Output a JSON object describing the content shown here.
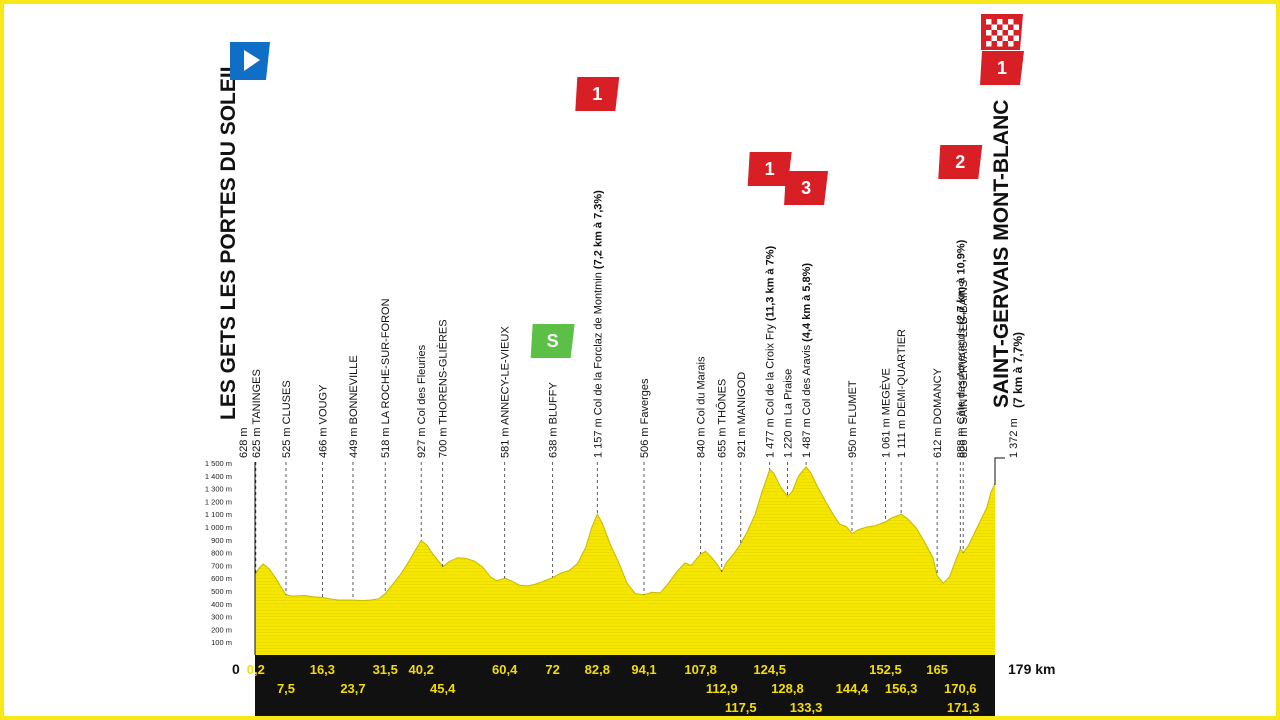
{
  "chart_data": {
    "type": "area",
    "title": "",
    "xlabel": "",
    "ylabel": "",
    "xlim": [
      0,
      179
    ],
    "ylim": [
      0,
      1500
    ],
    "y_tick_labels": [
      "100 m",
      "200 m",
      "300 m",
      "400 m",
      "500 m",
      "600 m",
      "700 m",
      "800 m",
      "900 m",
      "1 000 m",
      "1 100 m",
      "1 200 m",
      "1 300 m",
      "1 400 m",
      "1 500 m"
    ],
    "start_km_label": "0",
    "end_km_label": "179 km",
    "fill_color": "#f6e700",
    "band_color": "#111111",
    "start": {
      "elevation": "628 m",
      "name": "LES GETS LES PORTES DU SOLEIL"
    },
    "finish": {
      "elevation": "1 372 m",
      "name": "SAINT-GERVAIS MONT-BLANC",
      "climb": "(7 km à 7,7%)"
    },
    "waypoints": [
      {
        "km": 0.2,
        "km_label": "0,2",
        "row": 0,
        "elevation": "625 m",
        "name": "TANINGES",
        "climb": ""
      },
      {
        "km": 7.5,
        "km_label": "7,5",
        "row": 1,
        "elevation": "525 m",
        "name": "CLUSES",
        "climb": ""
      },
      {
        "km": 16.3,
        "km_label": "16,3",
        "row": 0,
        "elevation": "466 m",
        "name": "VOUGY",
        "climb": ""
      },
      {
        "km": 23.7,
        "km_label": "23,7",
        "row": 1,
        "elevation": "449 m",
        "name": "BONNEVILLE",
        "climb": ""
      },
      {
        "km": 31.5,
        "km_label": "31,5",
        "row": 0,
        "elevation": "518 m",
        "name": "LA ROCHE-SUR-FORON",
        "climb": ""
      },
      {
        "km": 40.2,
        "km_label": "40,2",
        "row": 0,
        "elevation": "927 m",
        "name": "Col des Fleuries",
        "climb": ""
      },
      {
        "km": 45.4,
        "km_label": "45,4",
        "row": 1,
        "elevation": "700 m",
        "name": "THORENS-GLIÈRES",
        "climb": ""
      },
      {
        "km": 60.4,
        "km_label": "60,4",
        "row": 0,
        "elevation": "581 m",
        "name": "ANNECY-LE-VIEUX",
        "climb": ""
      },
      {
        "km": 72,
        "km_label": "72",
        "row": 0,
        "elevation": "638 m",
        "name": "BLUFFY",
        "climb": ""
      },
      {
        "km": 82.8,
        "km_label": "82,8",
        "row": 0,
        "elevation": "1 157 m",
        "name": "Col de la Forclaz de Montmin",
        "climb": "(7,2 km à 7,3%)"
      },
      {
        "km": 94.1,
        "km_label": "94,1",
        "row": 0,
        "elevation": "506 m",
        "name": "Faverges",
        "climb": ""
      },
      {
        "km": 107.8,
        "km_label": "107,8",
        "row": 0,
        "elevation": "840 m",
        "name": "Col du Marais",
        "climb": ""
      },
      {
        "km": 112.9,
        "km_label": "112,9",
        "row": 1,
        "elevation": "655 m",
        "name": "THÔNES",
        "climb": ""
      },
      {
        "km": 117.5,
        "km_label": "117,5",
        "row": 2,
        "elevation": "921 m",
        "name": "MANIGOD",
        "climb": ""
      },
      {
        "km": 124.5,
        "km_label": "124,5",
        "row": 0,
        "elevation": "1 477 m",
        "name": "Col de la Croix Fry",
        "climb": "(11,3 km à 7%)"
      },
      {
        "km": 128.8,
        "km_label": "128,8",
        "row": 1,
        "elevation": "1 220 m",
        "name": "La Praise",
        "climb": ""
      },
      {
        "km": 133.3,
        "km_label": "133,3",
        "row": 2,
        "elevation": "1 487 m",
        "name": "Col des Aravis",
        "climb": "(4,4 km à 5,8%)"
      },
      {
        "km": 144.4,
        "km_label": "144,4",
        "row": 1,
        "elevation": "950 m",
        "name": "FLUMET",
        "climb": ""
      },
      {
        "km": 152.5,
        "km_label": "152,5",
        "row": 0,
        "elevation": "1 061 m",
        "name": "MEGÈVE",
        "climb": ""
      },
      {
        "km": 156.3,
        "km_label": "156,3",
        "row": 1,
        "elevation": "1 111 m",
        "name": "DEMI-QUARTIER",
        "climb": ""
      },
      {
        "km": 165,
        "km_label": "165",
        "row": 0,
        "elevation": "612 m",
        "name": "DOMANCY",
        "climb": ""
      },
      {
        "km": 170.6,
        "km_label": "170,6",
        "row": 1,
        "elevation": "888 m",
        "name": "Côte des Amerands",
        "climb": "(2,7 km à 10,9%)"
      },
      {
        "km": 171.3,
        "km_label": "171,3",
        "row": 2,
        "elevation": "826 m",
        "name": "SAINT-GERVAIS-LES-BAINS",
        "climb": ""
      }
    ],
    "profile": [
      [
        0,
        628
      ],
      [
        1,
        680
      ],
      [
        2,
        710
      ],
      [
        3.5,
        670
      ],
      [
        5,
        600
      ],
      [
        6.5,
        520
      ],
      [
        7.5,
        470
      ],
      [
        9,
        460
      ],
      [
        12,
        465
      ],
      [
        14,
        455
      ],
      [
        16.3,
        450
      ],
      [
        18,
        440
      ],
      [
        20,
        430
      ],
      [
        23.7,
        430
      ],
      [
        26,
        425
      ],
      [
        28,
        430
      ],
      [
        30,
        440
      ],
      [
        31.5,
        480
      ],
      [
        33,
        540
      ],
      [
        35,
        620
      ],
      [
        37,
        720
      ],
      [
        39,
        830
      ],
      [
        40.2,
        895
      ],
      [
        41.5,
        860
      ],
      [
        43,
        790
      ],
      [
        44.5,
        730
      ],
      [
        45.4,
        690
      ],
      [
        47,
        730
      ],
      [
        49,
        760
      ],
      [
        51,
        755
      ],
      [
        53,
        735
      ],
      [
        55,
        690
      ],
      [
        57,
        610
      ],
      [
        58.5,
        580
      ],
      [
        60.4,
        600
      ],
      [
        62,
        580
      ],
      [
        64,
        545
      ],
      [
        66,
        540
      ],
      [
        68,
        555
      ],
      [
        70,
        580
      ],
      [
        72,
        605
      ],
      [
        74,
        640
      ],
      [
        76,
        660
      ],
      [
        78,
        715
      ],
      [
        80,
        840
      ],
      [
        81.5,
        1000
      ],
      [
        82.8,
        1100
      ],
      [
        84,
        1030
      ],
      [
        86,
        860
      ],
      [
        88,
        720
      ],
      [
        90,
        560
      ],
      [
        92,
        480
      ],
      [
        94.1,
        470
      ],
      [
        96,
        490
      ],
      [
        98,
        485
      ],
      [
        100,
        560
      ],
      [
        102,
        650
      ],
      [
        104,
        720
      ],
      [
        105.5,
        700
      ],
      [
        107.8,
        790
      ],
      [
        109,
        810
      ],
      [
        110.5,
        760
      ],
      [
        112,
        700
      ],
      [
        112.9,
        650
      ],
      [
        114,
        720
      ],
      [
        116,
        800
      ],
      [
        117.5,
        870
      ],
      [
        119,
        960
      ],
      [
        121,
        1100
      ],
      [
        122.5,
        1260
      ],
      [
        124,
        1400
      ],
      [
        124.5,
        1450
      ],
      [
        125.5,
        1420
      ],
      [
        127,
        1320
      ],
      [
        128.8,
        1240
      ],
      [
        130,
        1280
      ],
      [
        131.5,
        1400
      ],
      [
        133.3,
        1470
      ],
      [
        134.5,
        1420
      ],
      [
        136,
        1320
      ],
      [
        138,
        1200
      ],
      [
        140,
        1090
      ],
      [
        141.5,
        1020
      ],
      [
        143,
        1005
      ],
      [
        144.4,
        950
      ],
      [
        146,
        980
      ],
      [
        148,
        1000
      ],
      [
        150,
        1010
      ],
      [
        152.5,
        1040
      ],
      [
        154,
        1070
      ],
      [
        156.3,
        1100
      ],
      [
        158,
        1060
      ],
      [
        160,
        990
      ],
      [
        162,
        880
      ],
      [
        164,
        760
      ],
      [
        165,
        620
      ],
      [
        166.5,
        560
      ],
      [
        168,
        610
      ],
      [
        169.5,
        740
      ],
      [
        170.6,
        830
      ],
      [
        171.3,
        800
      ],
      [
        172.5,
        850
      ],
      [
        174,
        950
      ],
      [
        175.5,
        1050
      ],
      [
        177,
        1150
      ],
      [
        178,
        1270
      ],
      [
        179,
        1340
      ]
    ]
  },
  "badges": [
    {
      "type": "start-flag",
      "color": "#0f6fc6",
      "label": ""
    },
    {
      "type": "climb",
      "label": "1",
      "km": 82.8,
      "color": "#d81f26"
    },
    {
      "type": "sprint",
      "label": "S",
      "km": 72,
      "color": "#5cc046"
    },
    {
      "type": "climb",
      "label": "1",
      "km": 124.5,
      "color": "#d81f26"
    },
    {
      "type": "climb",
      "label": "3",
      "km": 133.3,
      "color": "#d81f26"
    },
    {
      "type": "climb",
      "label": "2",
      "km": 170.6,
      "color": "#d81f26"
    },
    {
      "type": "climb",
      "label": "1",
      "km": 179,
      "color": "#d81f26"
    },
    {
      "type": "finish-flag",
      "label": "",
      "km": 179,
      "color": "#d81f26"
    }
  ]
}
